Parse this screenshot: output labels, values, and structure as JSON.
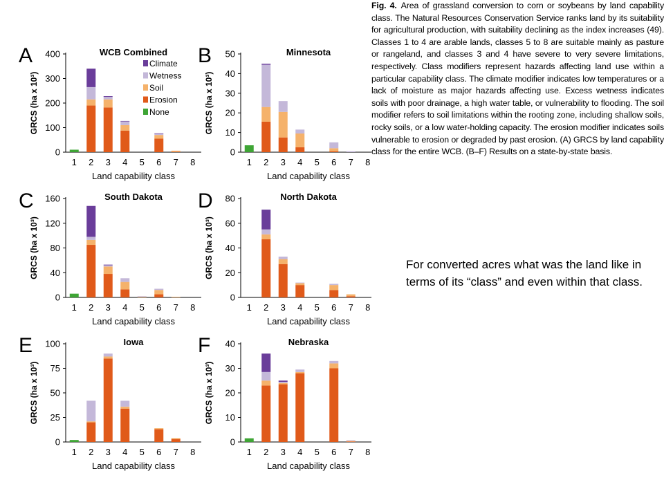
{
  "caption": {
    "label": "Fig. 4.",
    "text": "Area of grassland conversion to corn or soybeans by land capability class. The Natural Resources Conservation Service ranks land by its suitability for agricultural production, with suitability declining as the index increases (49). Classes 1 to 4 are arable lands, classes 5 to 8 are suitable mainly as pasture or rangeland, and classes 3 and 4 have severe to very severe limitations, respectively. Class modifiers represent hazards affecting land use within a particular capability class. The climate modifier indicates low temperatures or a lack of moisture as major hazards affecting use. Excess wetness indicates soils with poor drainage, a high water table, or vulnerability to flooding. The soil modifier refers to soil limitations within the rooting zone, including shallow soils, rocky soils, or a low water-holding capacity. The erosion modifier indicates soils vulnerable to erosion or degraded by past erosion. (A) GRCS by land capability class for the entire WCB. (B–F) Results on a state-by-state basis."
  },
  "note": {
    "text": "For converted acres what was the land like in terms of its “class” and even within that class."
  },
  "colors": {
    "Climate": "#6a3d9a",
    "Wetness": "#c4b8d9",
    "Soil": "#f5b26b",
    "Erosion": "#e05a1a",
    "None": "#3ea535"
  },
  "chart_data": [
    {
      "panel": "A",
      "title": "WCB Combined",
      "type": "bar",
      "stacked": true,
      "xlabel": "Land capability class",
      "ylabel": "GRCS (ha x 10³)",
      "ylim": [
        0,
        400
      ],
      "yticks": [
        0,
        100,
        200,
        300,
        400
      ],
      "categories": [
        "1",
        "2",
        "3",
        "4",
        "5",
        "6",
        "7",
        "8"
      ],
      "legend": [
        "Climate",
        "Wetness",
        "Soil",
        "Erosion",
        "None"
      ],
      "series": [
        {
          "name": "None",
          "values": [
            10,
            0,
            0,
            0,
            0,
            0,
            0,
            0
          ]
        },
        {
          "name": "Erosion",
          "values": [
            0,
            190,
            182,
            88,
            0,
            55,
            2,
            0
          ]
        },
        {
          "name": "Soil",
          "values": [
            0,
            25,
            33,
            22,
            0,
            15,
            4,
            0
          ]
        },
        {
          "name": "Wetness",
          "values": [
            0,
            50,
            10,
            15,
            0,
            5,
            0,
            0
          ]
        },
        {
          "name": "Climate",
          "values": [
            0,
            75,
            3,
            2,
            0,
            2,
            0,
            0
          ]
        }
      ]
    },
    {
      "panel": "B",
      "title": "Minnesota",
      "type": "bar",
      "stacked": true,
      "xlabel": "Land capability class",
      "ylabel": "GRCS (ha x 10³)",
      "ylim": [
        0,
        50
      ],
      "yticks": [
        0,
        10,
        20,
        30,
        40,
        50
      ],
      "categories": [
        "1",
        "2",
        "3",
        "4",
        "5",
        "6",
        "7",
        "8"
      ],
      "series": [
        {
          "name": "None",
          "values": [
            3.5,
            0,
            0,
            0,
            0,
            0,
            0,
            0
          ]
        },
        {
          "name": "Erosion",
          "values": [
            0,
            15.5,
            7.5,
            2.5,
            0,
            0.5,
            0,
            0
          ]
        },
        {
          "name": "Soil",
          "values": [
            0,
            7.5,
            13,
            7,
            0,
            1.5,
            0,
            0
          ]
        },
        {
          "name": "Wetness",
          "values": [
            0,
            21.5,
            5.5,
            2,
            0,
            3,
            0.5,
            0
          ]
        },
        {
          "name": "Climate",
          "values": [
            0,
            0.5,
            0,
            0,
            0,
            0,
            0,
            0
          ]
        }
      ]
    },
    {
      "panel": "C",
      "title": "South Dakota",
      "type": "bar",
      "stacked": true,
      "xlabel": "Land capability class",
      "ylabel": "GRCS (ha x 10³)",
      "ylim": [
        0,
        160
      ],
      "yticks": [
        0,
        40,
        80,
        120,
        160
      ],
      "categories": [
        "1",
        "2",
        "3",
        "4",
        "5",
        "6",
        "7",
        "8"
      ],
      "series": [
        {
          "name": "None",
          "values": [
            6,
            0,
            0,
            0,
            0,
            0,
            0,
            0
          ]
        },
        {
          "name": "Erosion",
          "values": [
            0,
            85,
            38,
            13,
            0,
            5,
            0,
            0
          ]
        },
        {
          "name": "Soil",
          "values": [
            0,
            8,
            12,
            12,
            1,
            7,
            1,
            0
          ]
        },
        {
          "name": "Wetness",
          "values": [
            0,
            5,
            2,
            6,
            1,
            2,
            0,
            0
          ]
        },
        {
          "name": "Climate",
          "values": [
            0,
            50,
            1,
            0,
            0,
            0,
            0,
            0
          ]
        }
      ]
    },
    {
      "panel": "D",
      "title": "North Dakota",
      "type": "bar",
      "stacked": true,
      "xlabel": "Land capability class",
      "ylabel": "GRCS (ha x 10³)",
      "ylim": [
        0,
        80
      ],
      "yticks": [
        0,
        20,
        40,
        60,
        80
      ],
      "categories": [
        "1",
        "2",
        "3",
        "4",
        "5",
        "6",
        "7",
        "8"
      ],
      "series": [
        {
          "name": "None",
          "values": [
            0,
            0,
            0,
            0,
            0,
            0,
            0,
            0
          ]
        },
        {
          "name": "Erosion",
          "values": [
            0,
            47,
            27,
            10,
            0,
            6,
            1,
            0
          ]
        },
        {
          "name": "Soil",
          "values": [
            0,
            4,
            4,
            1.5,
            0,
            4,
            1.5,
            0
          ]
        },
        {
          "name": "Wetness",
          "values": [
            0,
            4,
            2,
            0.5,
            0,
            1,
            0,
            0
          ]
        },
        {
          "name": "Climate",
          "values": [
            0,
            16,
            0,
            0,
            0,
            0,
            0,
            0
          ]
        }
      ]
    },
    {
      "panel": "E",
      "title": "Iowa",
      "type": "bar",
      "stacked": true,
      "xlabel": "Land capability class",
      "ylabel": "GRCS (ha x 10³)",
      "ylim": [
        0,
        100
      ],
      "yticks": [
        0,
        25,
        50,
        75,
        100
      ],
      "categories": [
        "1",
        "2",
        "3",
        "4",
        "5",
        "6",
        "7",
        "8"
      ],
      "series": [
        {
          "name": "None",
          "values": [
            2,
            0,
            0,
            0,
            0,
            0,
            0,
            0
          ]
        },
        {
          "name": "Erosion",
          "values": [
            0,
            20,
            85,
            34,
            0,
            13,
            3,
            0
          ]
        },
        {
          "name": "Soil",
          "values": [
            0,
            1,
            2,
            2,
            0,
            1,
            1,
            0
          ]
        },
        {
          "name": "Wetness",
          "values": [
            0,
            21,
            3,
            6,
            0,
            0,
            0,
            0
          ]
        },
        {
          "name": "Climate",
          "values": [
            0,
            0,
            0,
            0,
            0,
            0,
            0,
            0
          ]
        }
      ]
    },
    {
      "panel": "F",
      "title": "Nebraska",
      "type": "bar",
      "stacked": true,
      "xlabel": "Land capability class",
      "ylabel": "GRCS (ha x 10³)",
      "ylim": [
        0,
        40
      ],
      "yticks": [
        0,
        10,
        20,
        30,
        40
      ],
      "categories": [
        "1",
        "2",
        "3",
        "4",
        "5",
        "6",
        "7",
        "8"
      ],
      "series": [
        {
          "name": "None",
          "values": [
            1.5,
            0,
            0,
            0,
            0,
            0,
            0,
            0
          ]
        },
        {
          "name": "Erosion",
          "values": [
            0,
            23,
            23.5,
            28,
            0,
            30,
            0.2,
            0
          ]
        },
        {
          "name": "Soil",
          "values": [
            0,
            2,
            0.5,
            0.5,
            0,
            2,
            0.2,
            0
          ]
        },
        {
          "name": "Wetness",
          "values": [
            0,
            3.5,
            0.5,
            1,
            0,
            1,
            0.3,
            0
          ]
        },
        {
          "name": "Climate",
          "values": [
            0,
            7.5,
            0.5,
            0,
            0,
            0,
            0,
            0
          ]
        }
      ]
    }
  ]
}
